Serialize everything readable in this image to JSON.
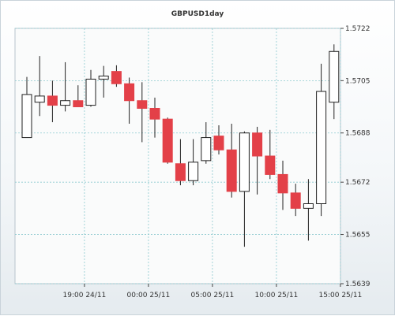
{
  "chart_data": {
    "type": "candlestick",
    "title": "GBPUSD1day",
    "xlabel": "",
    "ylabel": "",
    "ylim": [
      1.5639,
      1.5722
    ],
    "yticks": [
      "1.5722",
      "1.5705",
      "1.5688",
      "1.5672",
      "1.5655",
      "1.5639"
    ],
    "ytick_values": [
      1.5722,
      1.5705,
      1.5688,
      1.5672,
      1.5655,
      1.5639
    ],
    "xticks": [
      "19:00 24/11",
      "00:00 25/11",
      "05:00 25/11",
      "10:00 25/11",
      "15:00 25/11"
    ],
    "xtick_bar_index": [
      4.5,
      9.5,
      14.5,
      19.5,
      24.5
    ],
    "grid": true,
    "legend": "none",
    "colors": {
      "up": "#ffffff",
      "down": "#e34048",
      "outline": "#222222",
      "grid": "#8cc9cf"
    },
    "candles": [
      {
        "open": 1.56865,
        "high": 1.57062,
        "low": 1.56865,
        "close": 1.57005
      },
      {
        "open": 1.5698,
        "high": 1.5713,
        "low": 1.56935,
        "close": 1.57
      },
      {
        "open": 1.57,
        "high": 1.5705,
        "low": 1.56915,
        "close": 1.5697
      },
      {
        "open": 1.5697,
        "high": 1.5711,
        "low": 1.5695,
        "close": 1.56985
      },
      {
        "open": 1.56985,
        "high": 1.57035,
        "low": 1.56965,
        "close": 1.56965
      },
      {
        "open": 1.5697,
        "high": 1.57085,
        "low": 1.56965,
        "close": 1.57055
      },
      {
        "open": 1.57055,
        "high": 1.57098,
        "low": 1.56995,
        "close": 1.57065
      },
      {
        "open": 1.5708,
        "high": 1.571,
        "low": 1.5703,
        "close": 1.5704
      },
      {
        "open": 1.5704,
        "high": 1.5706,
        "low": 1.5691,
        "close": 1.56985
      },
      {
        "open": 1.56985,
        "high": 1.57045,
        "low": 1.5685,
        "close": 1.5696
      },
      {
        "open": 1.5696,
        "high": 1.56995,
        "low": 1.56865,
        "close": 1.56925
      },
      {
        "open": 1.56925,
        "high": 1.5693,
        "low": 1.5678,
        "close": 1.56785
      },
      {
        "open": 1.5678,
        "high": 1.5686,
        "low": 1.5671,
        "close": 1.56725
      },
      {
        "open": 1.56725,
        "high": 1.5686,
        "low": 1.5671,
        "close": 1.56785
      },
      {
        "open": 1.5679,
        "high": 1.56915,
        "low": 1.5678,
        "close": 1.56865
      },
      {
        "open": 1.5687,
        "high": 1.56905,
        "low": 1.5681,
        "close": 1.56825
      },
      {
        "open": 1.56825,
        "high": 1.5691,
        "low": 1.5667,
        "close": 1.5669
      },
      {
        "open": 1.5669,
        "high": 1.56885,
        "low": 1.5651,
        "close": 1.5688
      },
      {
        "open": 1.5688,
        "high": 1.569,
        "low": 1.5668,
        "close": 1.56805
      },
      {
        "open": 1.56805,
        "high": 1.5689,
        "low": 1.5673,
        "close": 1.56745
      },
      {
        "open": 1.56745,
        "high": 1.5679,
        "low": 1.5663,
        "close": 1.56685
      },
      {
        "open": 1.56685,
        "high": 1.56715,
        "low": 1.5661,
        "close": 1.56635
      },
      {
        "open": 1.56635,
        "high": 1.5673,
        "low": 1.5653,
        "close": 1.5665
      },
      {
        "open": 1.5665,
        "high": 1.57105,
        "low": 1.5661,
        "close": 1.57015
      },
      {
        "open": 1.5698,
        "high": 1.57168,
        "low": 1.56925,
        "close": 1.57145
      }
    ]
  }
}
